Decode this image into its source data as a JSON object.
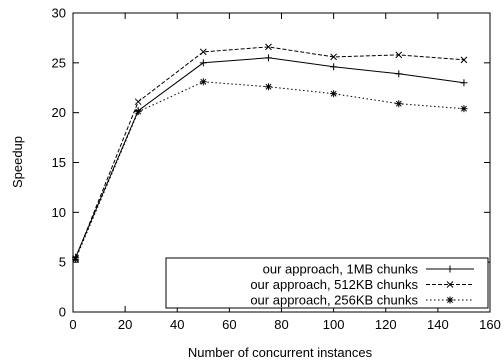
{
  "chart_data": {
    "type": "line",
    "xlabel": "Number of concurrent instances",
    "ylabel": "Speedup",
    "xlim": [
      0,
      160
    ],
    "ylim": [
      0,
      30
    ],
    "xticks": [
      0,
      20,
      40,
      60,
      80,
      100,
      120,
      140,
      160
    ],
    "yticks": [
      0,
      5,
      10,
      15,
      20,
      25,
      30
    ],
    "grid": false,
    "legend_position": "bottom-right",
    "series": [
      {
        "name": "our approach, 1MB chunks",
        "marker": "plus",
        "dash": "solid",
        "x": [
          1,
          25,
          50,
          75,
          100,
          125,
          150
        ],
        "y": [
          5.5,
          20.2,
          25.0,
          25.5,
          24.6,
          23.9,
          23.0
        ]
      },
      {
        "name": "our approach, 512KB chunks",
        "marker": "cross",
        "dash": "dashed",
        "x": [
          1,
          25,
          50,
          75,
          100,
          125,
          150
        ],
        "y": [
          5.4,
          21.1,
          26.1,
          26.6,
          25.6,
          25.8,
          25.3
        ]
      },
      {
        "name": "our approach, 256KB chunks",
        "marker": "star",
        "dash": "dotted",
        "x": [
          1,
          25,
          50,
          75,
          100,
          125,
          150
        ],
        "y": [
          5.3,
          20.1,
          23.1,
          22.6,
          21.9,
          20.9,
          20.4
        ]
      }
    ]
  }
}
